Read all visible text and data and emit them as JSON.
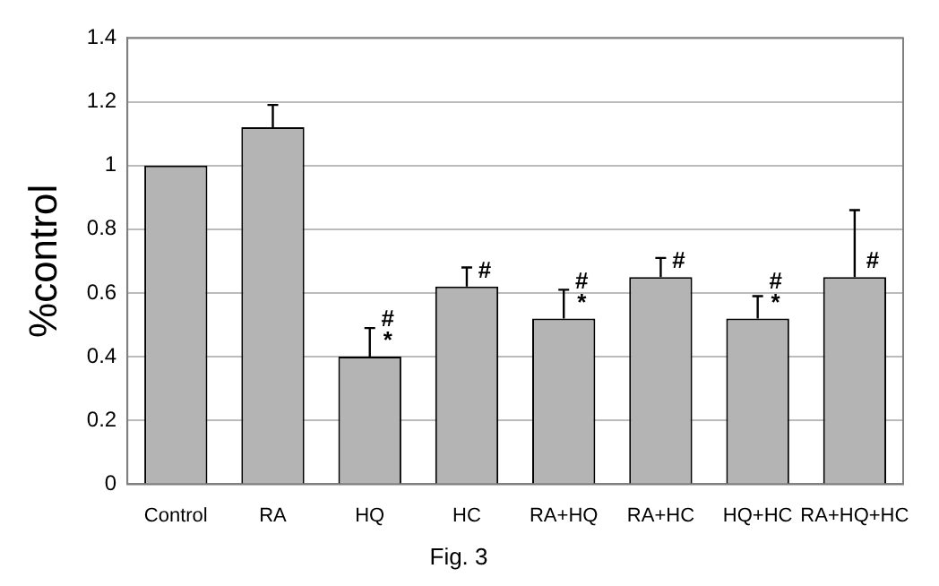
{
  "chart_data": {
    "type": "bar",
    "title": "Fig. 3",
    "ylabel": "%control",
    "categories": [
      "Control",
      "RA",
      "HQ",
      "HC",
      "RA+HQ",
      "RA+HC",
      "HQ+HC",
      "RA+HQ+HC"
    ],
    "values": [
      1.0,
      1.12,
      0.4,
      0.62,
      0.52,
      0.65,
      0.52,
      0.65
    ],
    "errors": [
      null,
      [
        1.12,
        1.19
      ],
      [
        0.4,
        0.49
      ],
      [
        0.62,
        0.68
      ],
      [
        0.52,
        0.61
      ],
      [
        0.65,
        0.71
      ],
      [
        0.52,
        0.59
      ],
      [
        0.65,
        0.86
      ]
    ],
    "color": "#b4b4b4",
    "ylim": [
      0,
      1.4
    ],
    "yticks": [
      0,
      0.2,
      0.4,
      0.6,
      0.8,
      1,
      1.2,
      1.4
    ],
    "grid": "y",
    "legend": false,
    "annotations": [
      {
        "text": "*",
        "x": "HQ",
        "y": 0.4
      },
      {
        "text": "#",
        "x": "HQ",
        "y": 0.4
      },
      {
        "text": "#",
        "x": "HC",
        "y": 0.62
      },
      {
        "text": "*",
        "x": "RA+HQ",
        "y": 0.52
      },
      {
        "text": "#",
        "x": "RA+HQ",
        "y": 0.52
      },
      {
        "text": "#",
        "x": "RA+HC",
        "y": 0.65
      },
      {
        "text": "*",
        "x": "HQ+HC",
        "y": 0.52
      },
      {
        "text": "#",
        "x": "HQ+HC",
        "y": 0.52
      },
      {
        "text": "#",
        "x": "RA+HQ+HC",
        "y": 0.65
      }
    ]
  }
}
